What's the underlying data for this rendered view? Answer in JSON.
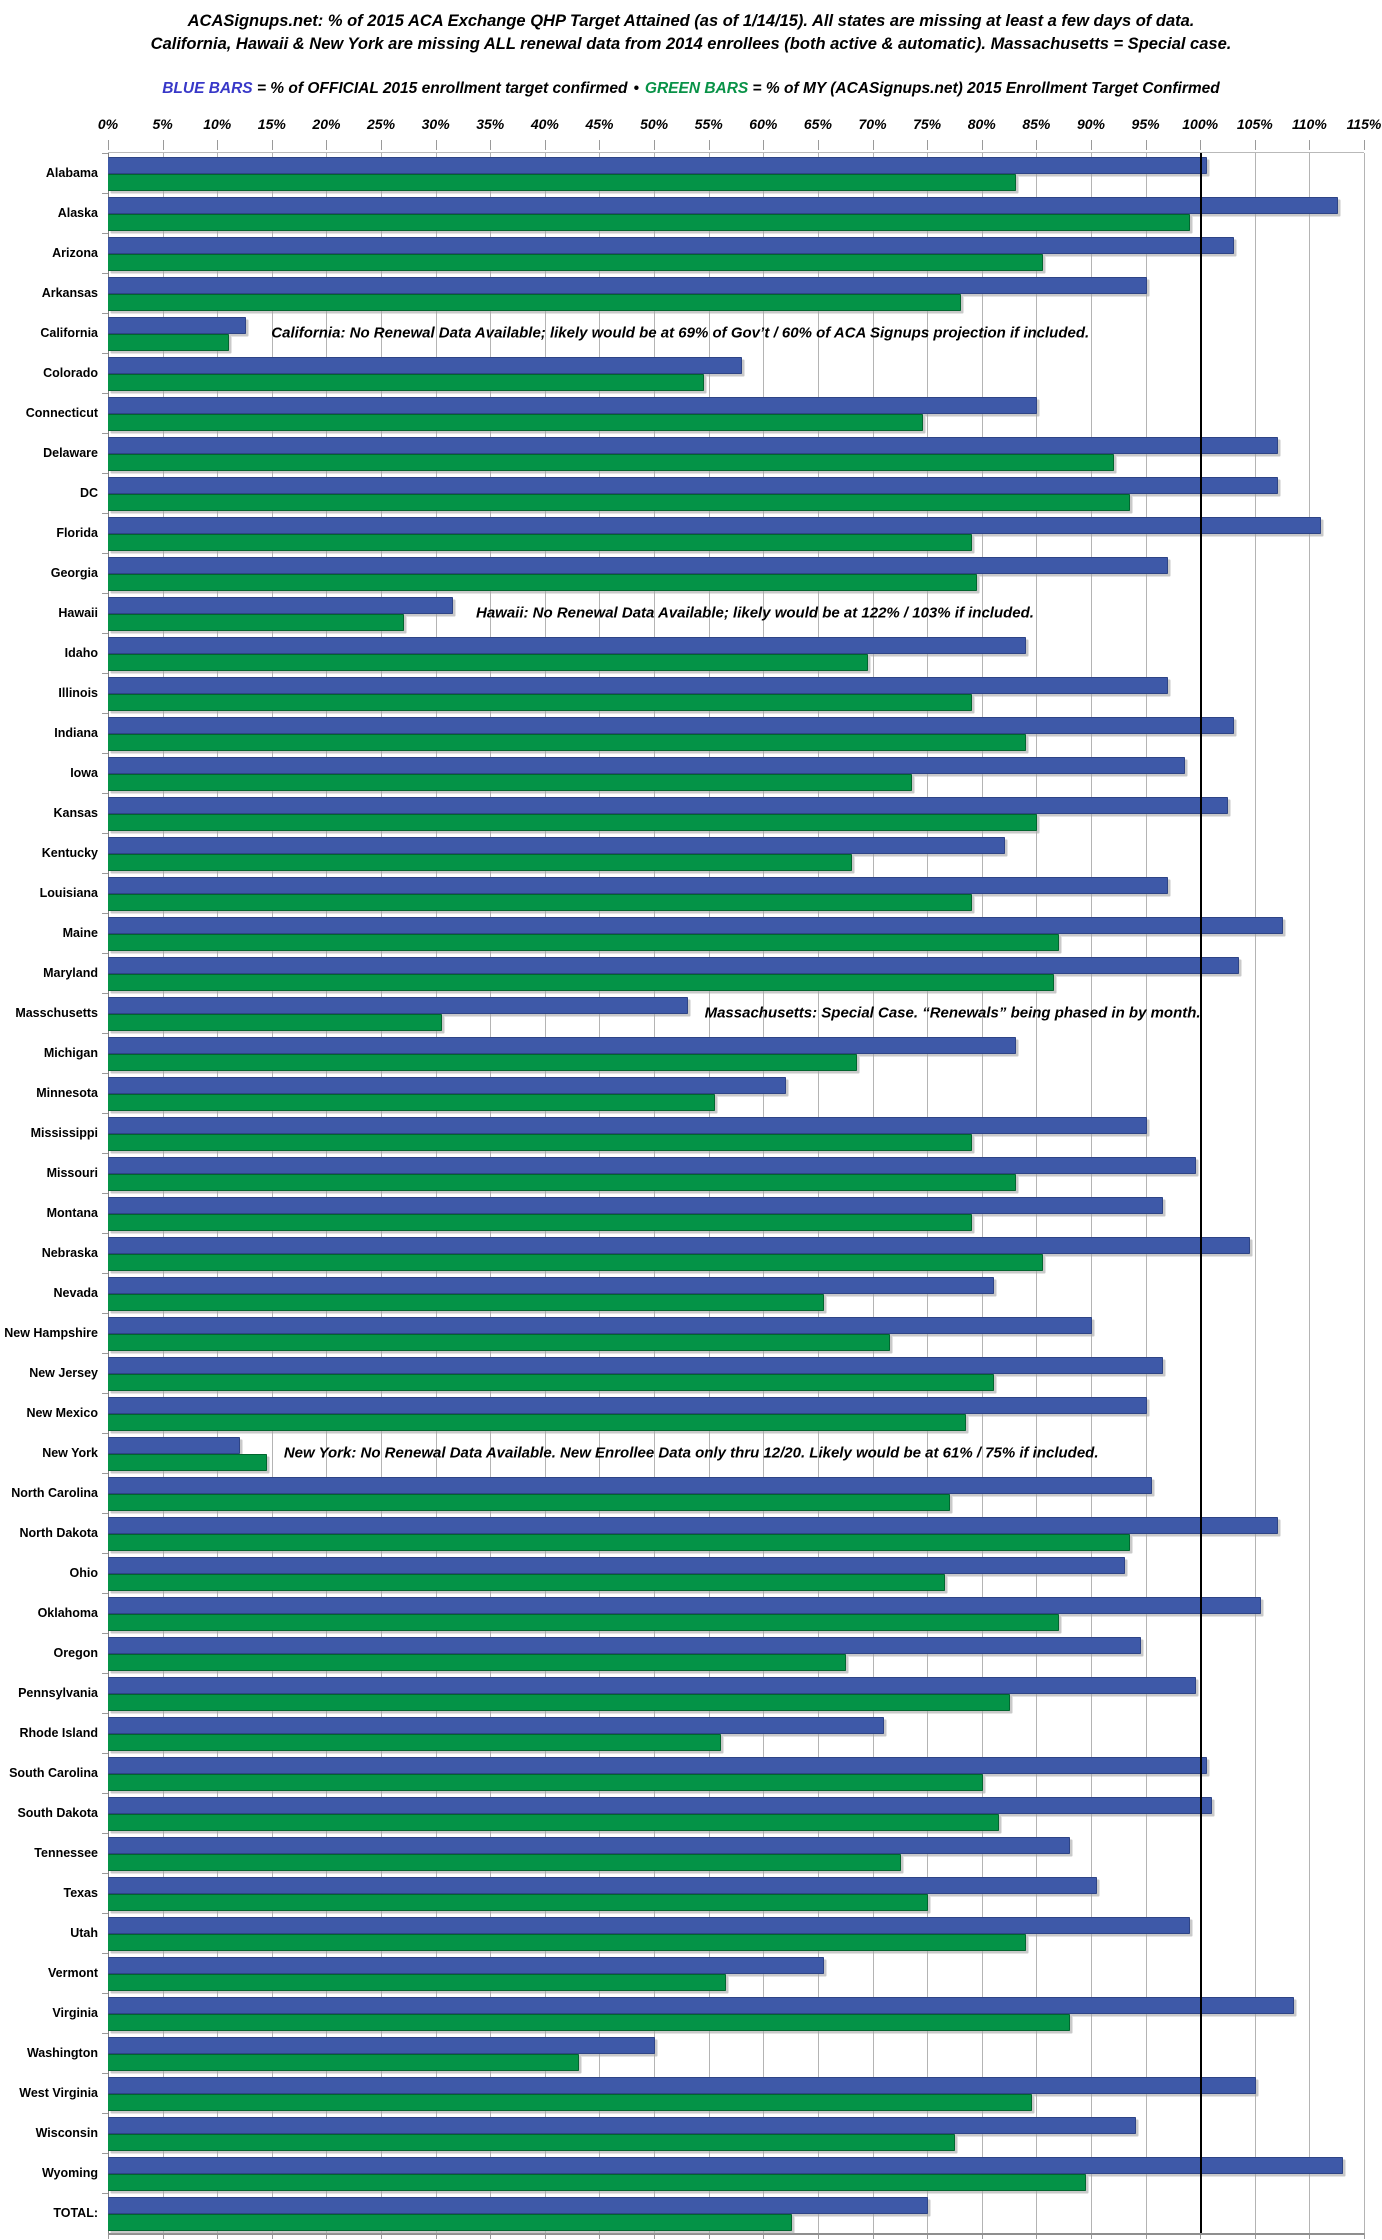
{
  "header": {
    "title_line1": "ACASignups.net: % of 2015 ACA Exchange QHP Target Attained (as of 1/14/15). All states are missing at least a few days of data.",
    "title_line2": "California, Hawaii & New York are missing ALL renewal data from 2014 enrollees (both active & automatic). Massachusetts = Special case."
  },
  "legend": {
    "blue_label": "BLUE BARS",
    "blue_text": " = % of OFFICIAL 2015 enrollment target confirmed",
    "separator": "•",
    "green_label": "GREEN BARS",
    "green_text": " = % of MY (ACASignups.net) 2015 Enrollment Target Confirmed"
  },
  "colors": {
    "blue_bar": "#3e59a8",
    "green_bar": "#049347",
    "legend_blue_text": "#3838c8",
    "legend_green_text": "#089247",
    "gridline": "#b4b4b4",
    "reference_line": "#000000"
  },
  "chart_data": {
    "type": "bar",
    "orientation": "horizontal",
    "xlim": [
      0,
      115
    ],
    "tick_step_pct": 5,
    "tick_labels": [
      "0%",
      "5%",
      "10%",
      "15%",
      "20%",
      "25%",
      "30%",
      "35%",
      "40%",
      "45%",
      "50%",
      "55%",
      "60%",
      "65%",
      "70%",
      "75%",
      "80%",
      "85%",
      "90%",
      "95%",
      "100%",
      "105%",
      "110%",
      "115%"
    ],
    "reference_line_value": 100,
    "grid": true,
    "categories": [
      "Alabama",
      "Alaska",
      "Arizona",
      "Arkansas",
      "California",
      "Colorado",
      "Connecticut",
      "Delaware",
      "DC",
      "Florida",
      "Georgia",
      "Hawaii",
      "Idaho",
      "Illinois",
      "Indiana",
      "Iowa",
      "Kansas",
      "Kentucky",
      "Louisiana",
      "Maine",
      "Maryland",
      "Masschusetts",
      "Michigan",
      "Minnesota",
      "Mississippi",
      "Missouri",
      "Montana",
      "Nebraska",
      "Nevada",
      "New Hampshire",
      "New Jersey",
      "New Mexico",
      "New York",
      "North Carolina",
      "North Dakota",
      "Ohio",
      "Oklahoma",
      "Oregon",
      "Pennsylvania",
      "Rhode Island",
      "South Carolina",
      "South Dakota",
      "Tennessee",
      "Texas",
      "Utah",
      "Vermont",
      "Virginia",
      "Washington",
      "West Virginia",
      "Wisconsin",
      "Wyoming",
      "TOTAL:"
    ],
    "series": [
      {
        "name": "% of OFFICIAL 2015 enrollment target confirmed",
        "color": "#3e59a8",
        "values": [
          100.5,
          112.5,
          103,
          95,
          12.5,
          58,
          85,
          107,
          107,
          111,
          97,
          31.5,
          84,
          97,
          103,
          98.5,
          102.5,
          82,
          97,
          107.5,
          103.5,
          53,
          83,
          62,
          95,
          99.5,
          96.5,
          104.5,
          81,
          90,
          96.5,
          95,
          12,
          95.5,
          107,
          93,
          105.5,
          94.5,
          99.5,
          71,
          100.5,
          101,
          88,
          90.5,
          99,
          65.5,
          108.5,
          50,
          105,
          94,
          113,
          75
        ]
      },
      {
        "name": "% of MY (ACASignups.net) 2015 Enrollment Target Confirmed",
        "color": "#049347",
        "values": [
          83,
          99,
          85.5,
          78,
          11,
          54.5,
          74.5,
          92,
          93.5,
          79,
          79.5,
          27,
          69.5,
          79,
          84,
          73.5,
          85,
          68,
          79,
          87,
          86.5,
          30.5,
          68.5,
          55.5,
          79,
          83,
          79,
          85.5,
          65.5,
          71.5,
          81,
          78.5,
          14.5,
          77,
          93.5,
          76.5,
          87,
          67.5,
          82.5,
          56,
          80,
          81.5,
          72.5,
          75,
          84,
          56.5,
          88,
          43,
          84.5,
          77.5,
          89.5,
          62.5
        ]
      }
    ],
    "annotations": [
      {
        "category": "California",
        "left_pct": 13,
        "text": "California: No Renewal Data Available; likely would be at 69% of Gov’t / 60% of ACA Signups projection if included."
      },
      {
        "category": "Hawaii",
        "left_pct": 29.3,
        "text": "Hawaii: No Renewal Data Available; likely would be at 122% / 103% if included."
      },
      {
        "category": "Masschusetts",
        "left_pct": 47.5,
        "text": "Massachusetts: Special Case. “Renewals” being phased in by month."
      },
      {
        "category": "New York",
        "left_pct": 14,
        "text": "New York: No Renewal Data Available. New Enrollee Data only thru 12/20. Likely would be at 61% / 75% if included."
      }
    ]
  }
}
